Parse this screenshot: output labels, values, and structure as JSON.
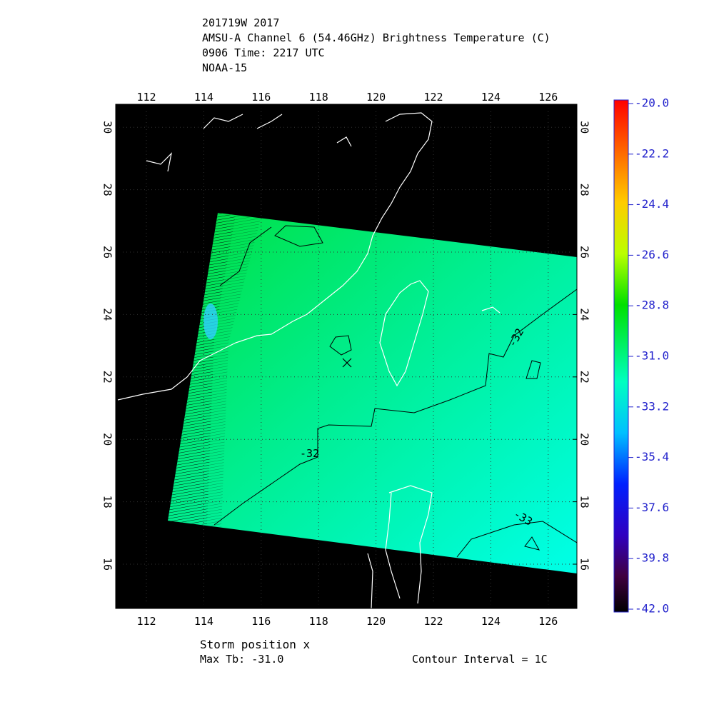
{
  "header": {
    "lines": [
      "201719W 2017",
      "AMSU-A Channel 6 (54.46GHz) Brightness Temperature (C)",
      "0906 Time: 2217 UTC",
      "NOAA-15"
    ]
  },
  "map": {
    "lon_ticks": [
      "112",
      "114",
      "116",
      "118",
      "120",
      "122",
      "124",
      "126"
    ],
    "lat_ticks": [
      "16",
      "18",
      "20",
      "22",
      "24",
      "26",
      "28",
      "30"
    ],
    "contour_labels": [
      "-32",
      "-32",
      "-33"
    ]
  },
  "colorbar": {
    "labels": [
      "-20.0",
      "-22.2",
      "-24.4",
      "-26.6",
      "-28.8",
      "-31.0",
      "-33.2",
      "-35.4",
      "-37.6",
      "-39.8",
      "-42.0"
    ]
  },
  "footer": {
    "storm_position": "Storm position x",
    "max_tb": "Max Tb: -31.0",
    "contour_interval": "Contour Interval = 1C"
  }
}
